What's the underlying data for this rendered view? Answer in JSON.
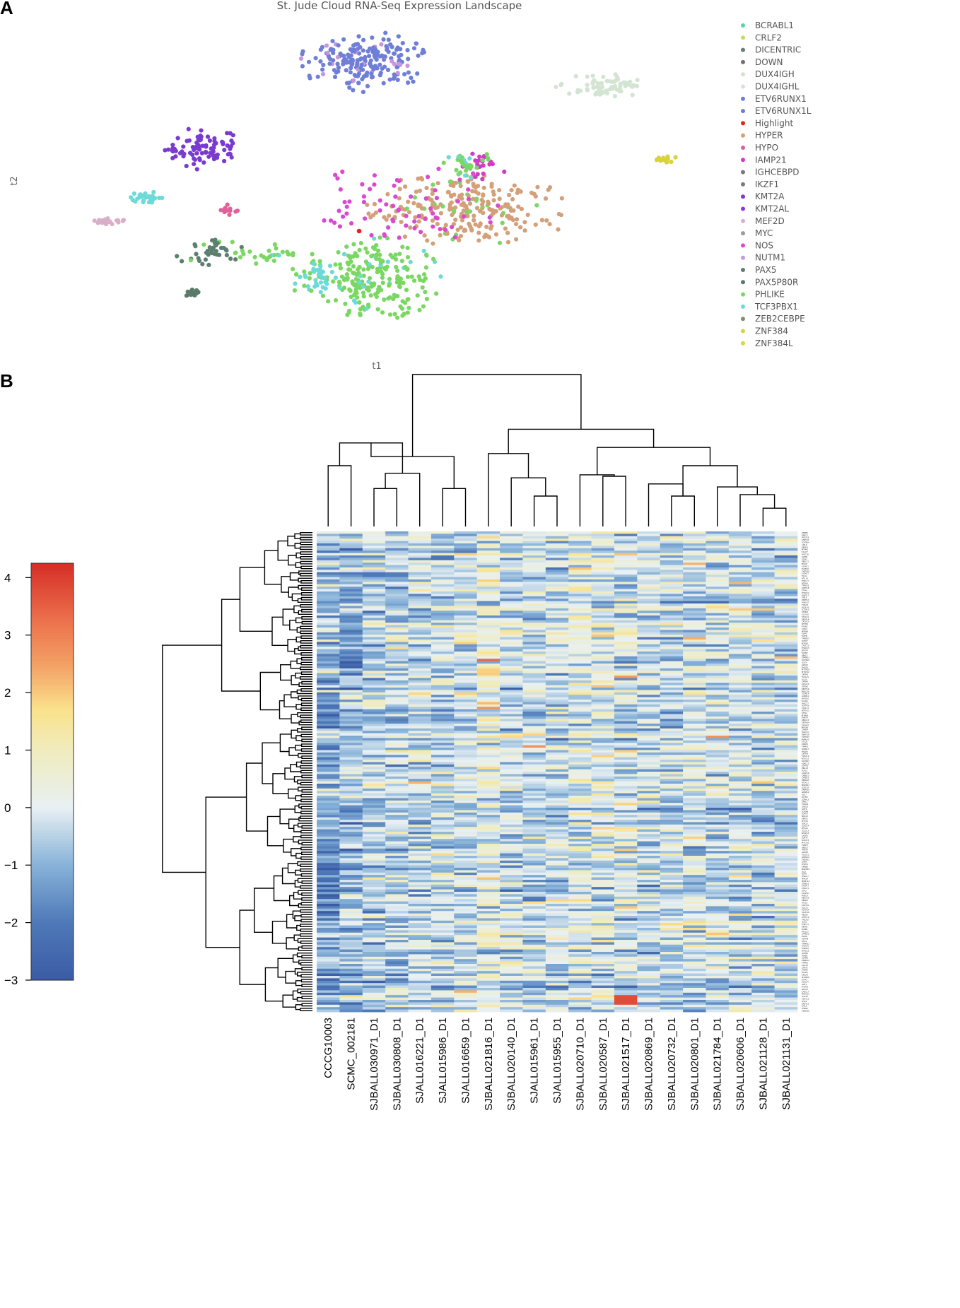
{
  "panels": {
    "a": "A",
    "b": "B"
  },
  "chart_data": [
    {
      "type": "scatter",
      "title": "St. Jude Cloud  RNA-Seq Expression Landscape",
      "xlabel": "t1",
      "ylabel": "t2",
      "legend_position": "right",
      "grid": false,
      "legend": [
        {
          "label": "BCRABL1",
          "color": "#5cd6a0"
        },
        {
          "label": "CRLF2",
          "color": "#c8d96a"
        },
        {
          "label": "DICENTRIC",
          "color": "#6e7a72"
        },
        {
          "label": "DOWN",
          "color": "#727272"
        },
        {
          "label": "DUX4IGH",
          "color": "#d3e4d3"
        },
        {
          "label": "DUX4IGHL",
          "color": "#d6e4cf"
        },
        {
          "label": "ETV6RUNX1",
          "color": "#6f7fd6"
        },
        {
          "label": "ETV6RUNX1L",
          "color": "#6a7dd4"
        },
        {
          "label": "Highlight",
          "color": "#e8221e"
        },
        {
          "label": "HYPER",
          "color": "#d4a07a"
        },
        {
          "label": "HYPO",
          "color": "#e0609a"
        },
        {
          "label": "IAMP21",
          "color": "#d23cc4"
        },
        {
          "label": "IGHCEBPD",
          "color": "#7a7a7a"
        },
        {
          "label": "IKZF1",
          "color": "#7a7a7a"
        },
        {
          "label": "KMT2A",
          "color": "#7a3ad0"
        },
        {
          "label": "KMT2AL",
          "color": "#8a3ad8"
        },
        {
          "label": "MEF2D",
          "color": "#d9afc8"
        },
        {
          "label": "MYC",
          "color": "#9a9a9a"
        },
        {
          "label": "NOS",
          "color": "#d84bd0"
        },
        {
          "label": "NUTM1",
          "color": "#c896dc"
        },
        {
          "label": "PAX5",
          "color": "#5c8070"
        },
        {
          "label": "PAX5P80R",
          "color": "#5a7a6a"
        },
        {
          "label": "PHLIKE",
          "color": "#7ad862"
        },
        {
          "label": "TCF3PBX1",
          "color": "#6cdad8"
        },
        {
          "label": "ZEB2CEBPE",
          "color": "#8a8a6a"
        },
        {
          "label": "ZNF384",
          "color": "#d9d23a"
        },
        {
          "label": "ZNF384L",
          "color": "#dcd640"
        }
      ],
      "clusters": [
        {
          "group": "ETV6RUNX1",
          "cx": 515,
          "cy": 87,
          "rx": 85,
          "ry": 40,
          "n": 210
        },
        {
          "group": "DUX4IGH",
          "cx": 855,
          "cy": 122,
          "rx": 65,
          "ry": 16,
          "n": 70
        },
        {
          "group": "ZNF384",
          "cx": 943,
          "cy": 226,
          "rx": 18,
          "ry": 6,
          "n": 14
        },
        {
          "group": "KMT2A",
          "cx": 285,
          "cy": 210,
          "rx": 55,
          "ry": 28,
          "n": 85
        },
        {
          "group": "TCF3PBX1",
          "cx": 207,
          "cy": 280,
          "rx": 24,
          "ry": 9,
          "n": 28
        },
        {
          "group": "MEF2D",
          "cx": 150,
          "cy": 313,
          "rx": 27,
          "ry": 7,
          "n": 22
        },
        {
          "group": "HYPO",
          "cx": 320,
          "cy": 298,
          "rx": 20,
          "ry": 8,
          "n": 12
        },
        {
          "group": "PAX5",
          "cx": 295,
          "cy": 357,
          "rx": 45,
          "ry": 22,
          "n": 45
        },
        {
          "group": "PAX5P80R",
          "cx": 275,
          "cy": 414,
          "rx": 14,
          "ry": 8,
          "n": 16
        },
        {
          "group": "HYPER",
          "cx": 660,
          "cy": 297,
          "rx": 140,
          "ry": 50,
          "n": 260
        },
        {
          "group": "PHLIKE",
          "cx": 520,
          "cy": 395,
          "rx": 100,
          "ry": 58,
          "n": 240
        },
        {
          "group": "TCF3PBX1",
          "cx": 450,
          "cy": 390,
          "rx": 25,
          "ry": 25,
          "n": 30
        },
        {
          "group": "NOS",
          "cx": 560,
          "cy": 290,
          "rx": 140,
          "ry": 60,
          "n": 70
        },
        {
          "group": "IAMP21",
          "cx": 680,
          "cy": 235,
          "rx": 40,
          "ry": 20,
          "n": 25
        },
        {
          "group": "PHLIKE",
          "cx": 655,
          "cy": 230,
          "rx": 40,
          "ry": 20,
          "n": 30
        },
        {
          "group": "PHLIKE",
          "cx": 380,
          "cy": 360,
          "rx": 40,
          "ry": 16,
          "n": 25
        }
      ],
      "highlight": {
        "group": "Highlight",
        "x": 508,
        "y": 327
      }
    },
    {
      "type": "heatmap",
      "color_scale": {
        "min": -3,
        "max": 4.25,
        "ticks": [
          4,
          3,
          2,
          1,
          0,
          -1,
          -2,
          -3
        ]
      },
      "n_rows": 200,
      "columns": [
        "CCCG10003",
        "SCMC_002181",
        "SJBALL030971_D1",
        "SJBALL030808_D1",
        "SJALL016221_D1",
        "SJALL015986_D1",
        "SJALL016659_D1",
        "SJBALL021816_D1",
        "SJBALL020140_D1",
        "SJALL015961_D1",
        "SJALL015955_D1",
        "SJBALL020710_D1",
        "SJBALL020587_D1",
        "SJBALL021517_D1",
        "SJBALL020869_D1",
        "SJBALL020732_D1",
        "SJBALL020801_D1",
        "SJBALL021784_D1",
        "SJBALL020606_D1",
        "SJBALL021128_D1",
        "SJBALL021131_D1"
      ],
      "column_dendrogram": [
        [
          0,
          1
        ],
        [
          2,
          3
        ],
        [
          5,
          6
        ],
        [
          4,
          -2
        ],
        [
          -1,
          -4
        ],
        [
          -3,
          -5
        ],
        [
          9,
          10
        ],
        [
          8,
          -7
        ],
        [
          7,
          -8
        ],
        [
          12,
          13
        ],
        [
          11,
          -10
        ],
        [
          19,
          20
        ],
        [
          18,
          -12
        ],
        [
          17,
          -13
        ],
        [
          15,
          16
        ],
        [
          14,
          -15
        ],
        [
          -15,
          -14
        ],
        [
          -11,
          -17
        ],
        [
          -9,
          -18
        ],
        [
          -6,
          -19
        ]
      ],
      "column_merge_heights": [
        0.4,
        0.25,
        0.25,
        0.35,
        0.55,
        0.46,
        0.2,
        0.32,
        0.48,
        0.33,
        0.34,
        0.12,
        0.21,
        0.26,
        0.2,
        0.28,
        0.4,
        0.52,
        0.64,
        1.0
      ]
    }
  ]
}
